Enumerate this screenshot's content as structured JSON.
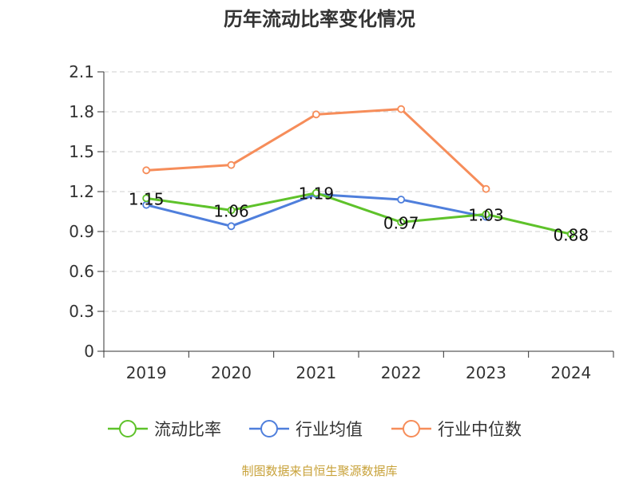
{
  "chart_data": {
    "type": "line",
    "title": "历年流动比率变化情况",
    "categories": [
      "2019",
      "2020",
      "2021",
      "2022",
      "2023",
      "2024"
    ],
    "ylim": [
      0,
      2.1
    ],
    "yticks": [
      0,
      0.3,
      0.6,
      0.9,
      1.2,
      1.5,
      1.8,
      2.1
    ],
    "ytick_labels": [
      "0",
      "0.3",
      "0.6",
      "0.9",
      "1.2",
      "1.5",
      "1.8",
      "2.1"
    ],
    "grid": true,
    "series": [
      {
        "name": "流动比率",
        "color": "#5ec22a",
        "values": [
          1.15,
          1.06,
          1.19,
          0.97,
          1.03,
          0.88
        ],
        "labels": [
          "1.15",
          "1.06",
          "1.19",
          "0.97",
          "1.03",
          "0.88"
        ]
      },
      {
        "name": "行业均值",
        "color": "#4f7fdc",
        "values": [
          1.1,
          0.94,
          1.18,
          1.14,
          1.01,
          null
        ]
      },
      {
        "name": "行业中位数",
        "color": "#f68d5a",
        "values": [
          1.36,
          1.4,
          1.78,
          1.82,
          1.22,
          null
        ]
      }
    ],
    "legend_position": "bottom",
    "source": "制图数据来自恒生聚源数据库"
  }
}
